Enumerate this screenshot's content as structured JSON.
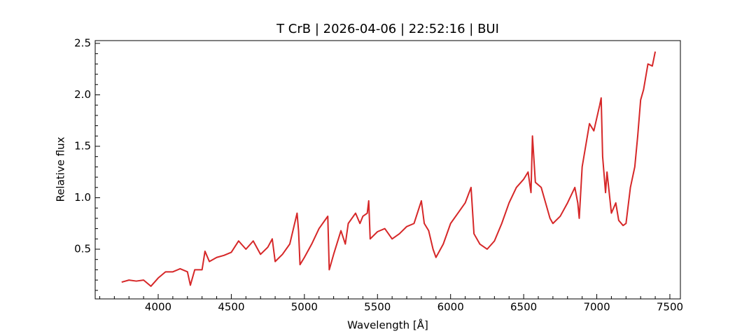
{
  "chart_data": {
    "type": "line",
    "title": "T CrB | 2026-04-06 | 22:52:16 | BUI",
    "x_label": "Wavelength [Å]",
    "y_label": "Relative flux",
    "color": "#d62728",
    "x": [
      3750,
      3800,
      3850,
      3900,
      3950,
      4000,
      4050,
      4100,
      4150,
      4200,
      4220,
      4250,
      4300,
      4320,
      4350,
      4400,
      4450,
      4500,
      4550,
      4600,
      4650,
      4700,
      4750,
      4780,
      4800,
      4850,
      4900,
      4950,
      4960,
      4970,
      5000,
      5050,
      5100,
      5150,
      5160,
      5170,
      5200,
      5250,
      5280,
      5300,
      5350,
      5380,
      5400,
      5430,
      5440,
      5450,
      5500,
      5550,
      5600,
      5650,
      5700,
      5750,
      5800,
      5820,
      5850,
      5880,
      5900,
      5950,
      6000,
      6050,
      6100,
      6140,
      6160,
      6200,
      6250,
      6300,
      6350,
      6400,
      6450,
      6500,
      6530,
      6550,
      6560,
      6580,
      6620,
      6650,
      6680,
      6700,
      6750,
      6800,
      6850,
      6870,
      6880,
      6900,
      6950,
      6980,
      7020,
      7030,
      7040,
      7060,
      7070,
      7100,
      7130,
      7150,
      7180,
      7200,
      7230,
      7260,
      7280,
      7300,
      7320,
      7350,
      7380,
      7400
    ],
    "values": [
      0.18,
      0.2,
      0.19,
      0.2,
      0.14,
      0.22,
      0.28,
      0.28,
      0.31,
      0.28,
      0.15,
      0.3,
      0.3,
      0.48,
      0.38,
      0.42,
      0.44,
      0.47,
      0.58,
      0.5,
      0.58,
      0.45,
      0.52,
      0.6,
      0.38,
      0.45,
      0.55,
      0.85,
      0.68,
      0.35,
      0.42,
      0.55,
      0.7,
      0.8,
      0.82,
      0.3,
      0.45,
      0.68,
      0.55,
      0.75,
      0.85,
      0.75,
      0.82,
      0.85,
      0.97,
      0.6,
      0.67,
      0.7,
      0.6,
      0.65,
      0.72,
      0.75,
      0.97,
      0.75,
      0.68,
      0.5,
      0.42,
      0.55,
      0.75,
      0.85,
      0.95,
      1.1,
      0.65,
      0.55,
      0.5,
      0.58,
      0.75,
      0.95,
      1.1,
      1.18,
      1.25,
      1.05,
      1.6,
      1.15,
      1.1,
      0.95,
      0.8,
      0.75,
      0.82,
      0.95,
      1.1,
      0.95,
      0.8,
      1.3,
      1.72,
      1.65,
      1.9,
      1.97,
      1.4,
      1.05,
      1.25,
      0.85,
      0.95,
      0.78,
      0.73,
      0.75,
      1.1,
      1.3,
      1.6,
      1.95,
      2.05,
      2.3,
      2.28,
      2.42
    ],
    "xlim": [
      3569,
      7572
    ],
    "ylim": [
      0.017,
      2.527
    ],
    "xticks": [
      4000,
      4500,
      5000,
      5500,
      6000,
      6500,
      7000,
      7500
    ],
    "yticks": [
      0.5,
      {
        "value": 1,
        "label": "1.0"
      },
      1.5,
      {
        "value": 2,
        "label": "2.0"
      },
      2.5
    ],
    "xminorticks": [
      3600,
      3700,
      3800,
      3900,
      4100,
      4200,
      4300,
      4400,
      4600,
      4700,
      4800,
      4900,
      5100,
      5200,
      5300,
      5400,
      5600,
      5700,
      5800,
      5900,
      6100,
      6200,
      6300,
      6400,
      6600,
      6700,
      6800,
      6900,
      7100,
      7200,
      7300,
      7400
    ],
    "yminorticks": [
      0.1,
      0.2,
      0.3,
      0.4,
      0.6,
      0.7,
      0.8,
      0.9,
      1.1,
      1.2,
      1.3,
      1.4,
      1.6,
      1.7,
      1.8,
      1.9,
      2.1,
      2.2,
      2.3,
      2.4
    ],
    "grid": false
  }
}
